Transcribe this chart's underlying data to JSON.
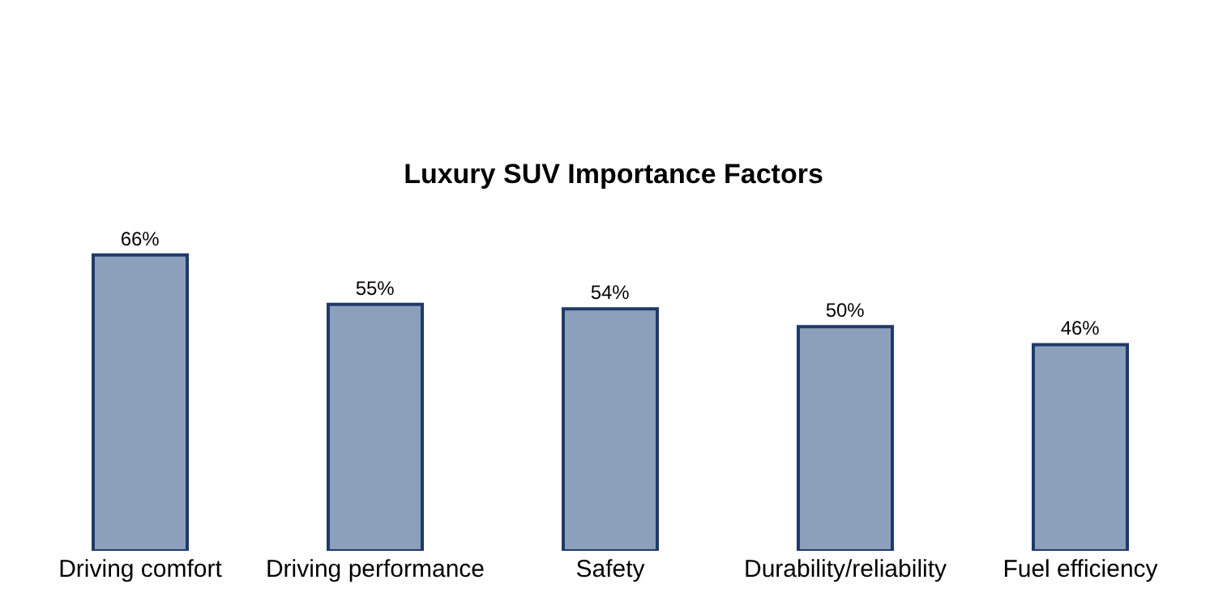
{
  "chart_data": {
    "type": "bar",
    "title": "Luxury SUV Importance Factors",
    "categories": [
      "Driving comfort",
      "Driving performance",
      "Safety",
      "Durability/reliability",
      "Fuel efficiency"
    ],
    "values": [
      66,
      55,
      54,
      50,
      46
    ],
    "value_labels": [
      "66%",
      "55%",
      "54%",
      "50%",
      "46%"
    ],
    "color": "#8da0bb"
  }
}
